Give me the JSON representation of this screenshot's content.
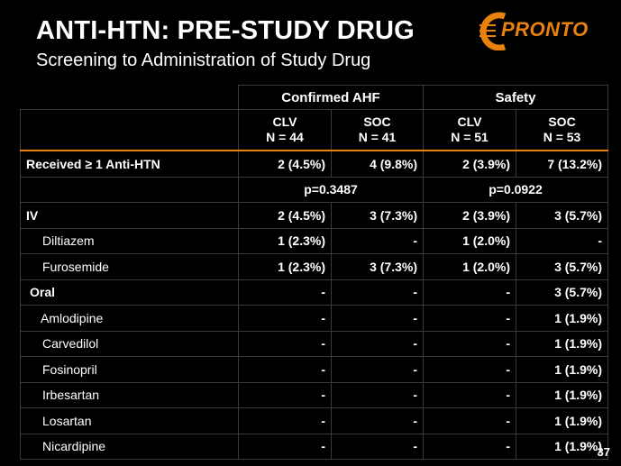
{
  "header": {
    "title": "ANTI-HTN: PRE-STUDY DRUG",
    "subtitle": "Screening to Administration of Study Drug",
    "logo_text": "PRONTO",
    "page_number": "37"
  },
  "table": {
    "groups": [
      "Confirmed AHF",
      "Safety"
    ],
    "columns": [
      {
        "arm": "CLV",
        "n": "N = 44"
      },
      {
        "arm": "SOC",
        "n": "N = 41"
      },
      {
        "arm": "CLV",
        "n": "N = 51"
      },
      {
        "arm": "SOC",
        "n": "N = 53"
      }
    ],
    "received": {
      "label": "Received ≥ 1 Anti-HTN",
      "values": [
        "2  (4.5%)",
        "4  (9.8%)",
        "2  (3.9%)",
        "7  (13.2%)"
      ]
    },
    "pvalues": [
      "p=0.3487",
      "p=0.0922"
    ],
    "rows": [
      {
        "label": "IV",
        "values": [
          "2  (4.5%)",
          "3  (7.3%)",
          "2  (3.9%)",
          "3  (5.7%)"
        ]
      },
      {
        "label": "Diltiazem",
        "values": [
          "1  (2.3%)",
          "-",
          "1  (2.0%)",
          "-"
        ]
      },
      {
        "label": "Furosemide",
        "values": [
          "1  (2.3%)",
          "3  (7.3%)",
          "1  (2.0%)",
          "3  (5.7%)"
        ]
      },
      {
        "label": "Oral",
        "values": [
          "-",
          "-",
          "-",
          "3  (5.7%)"
        ]
      },
      {
        "label": "Amlodipine",
        "values": [
          "-",
          "-",
          "-",
          "1  (1.9%)"
        ]
      },
      {
        "label": "Carvedilol",
        "values": [
          "-",
          "-",
          "-",
          "1  (1.9%)"
        ]
      },
      {
        "label": "Fosinopril",
        "values": [
          "-",
          "-",
          "-",
          "1  (1.9%)"
        ]
      },
      {
        "label": "Irbesartan",
        "values": [
          "-",
          "-",
          "-",
          "1  (1.9%)"
        ]
      },
      {
        "label": "Losartan",
        "values": [
          "-",
          "-",
          "-",
          "1  (1.9%)"
        ]
      },
      {
        "label": "Nicardipine",
        "values": [
          "-",
          "-",
          "-",
          "1  (1.9%)"
        ]
      }
    ]
  },
  "colors": {
    "background": "#000000",
    "text": "#ffffff",
    "accent": "#e8820c",
    "grid": "#3a3a3a"
  }
}
